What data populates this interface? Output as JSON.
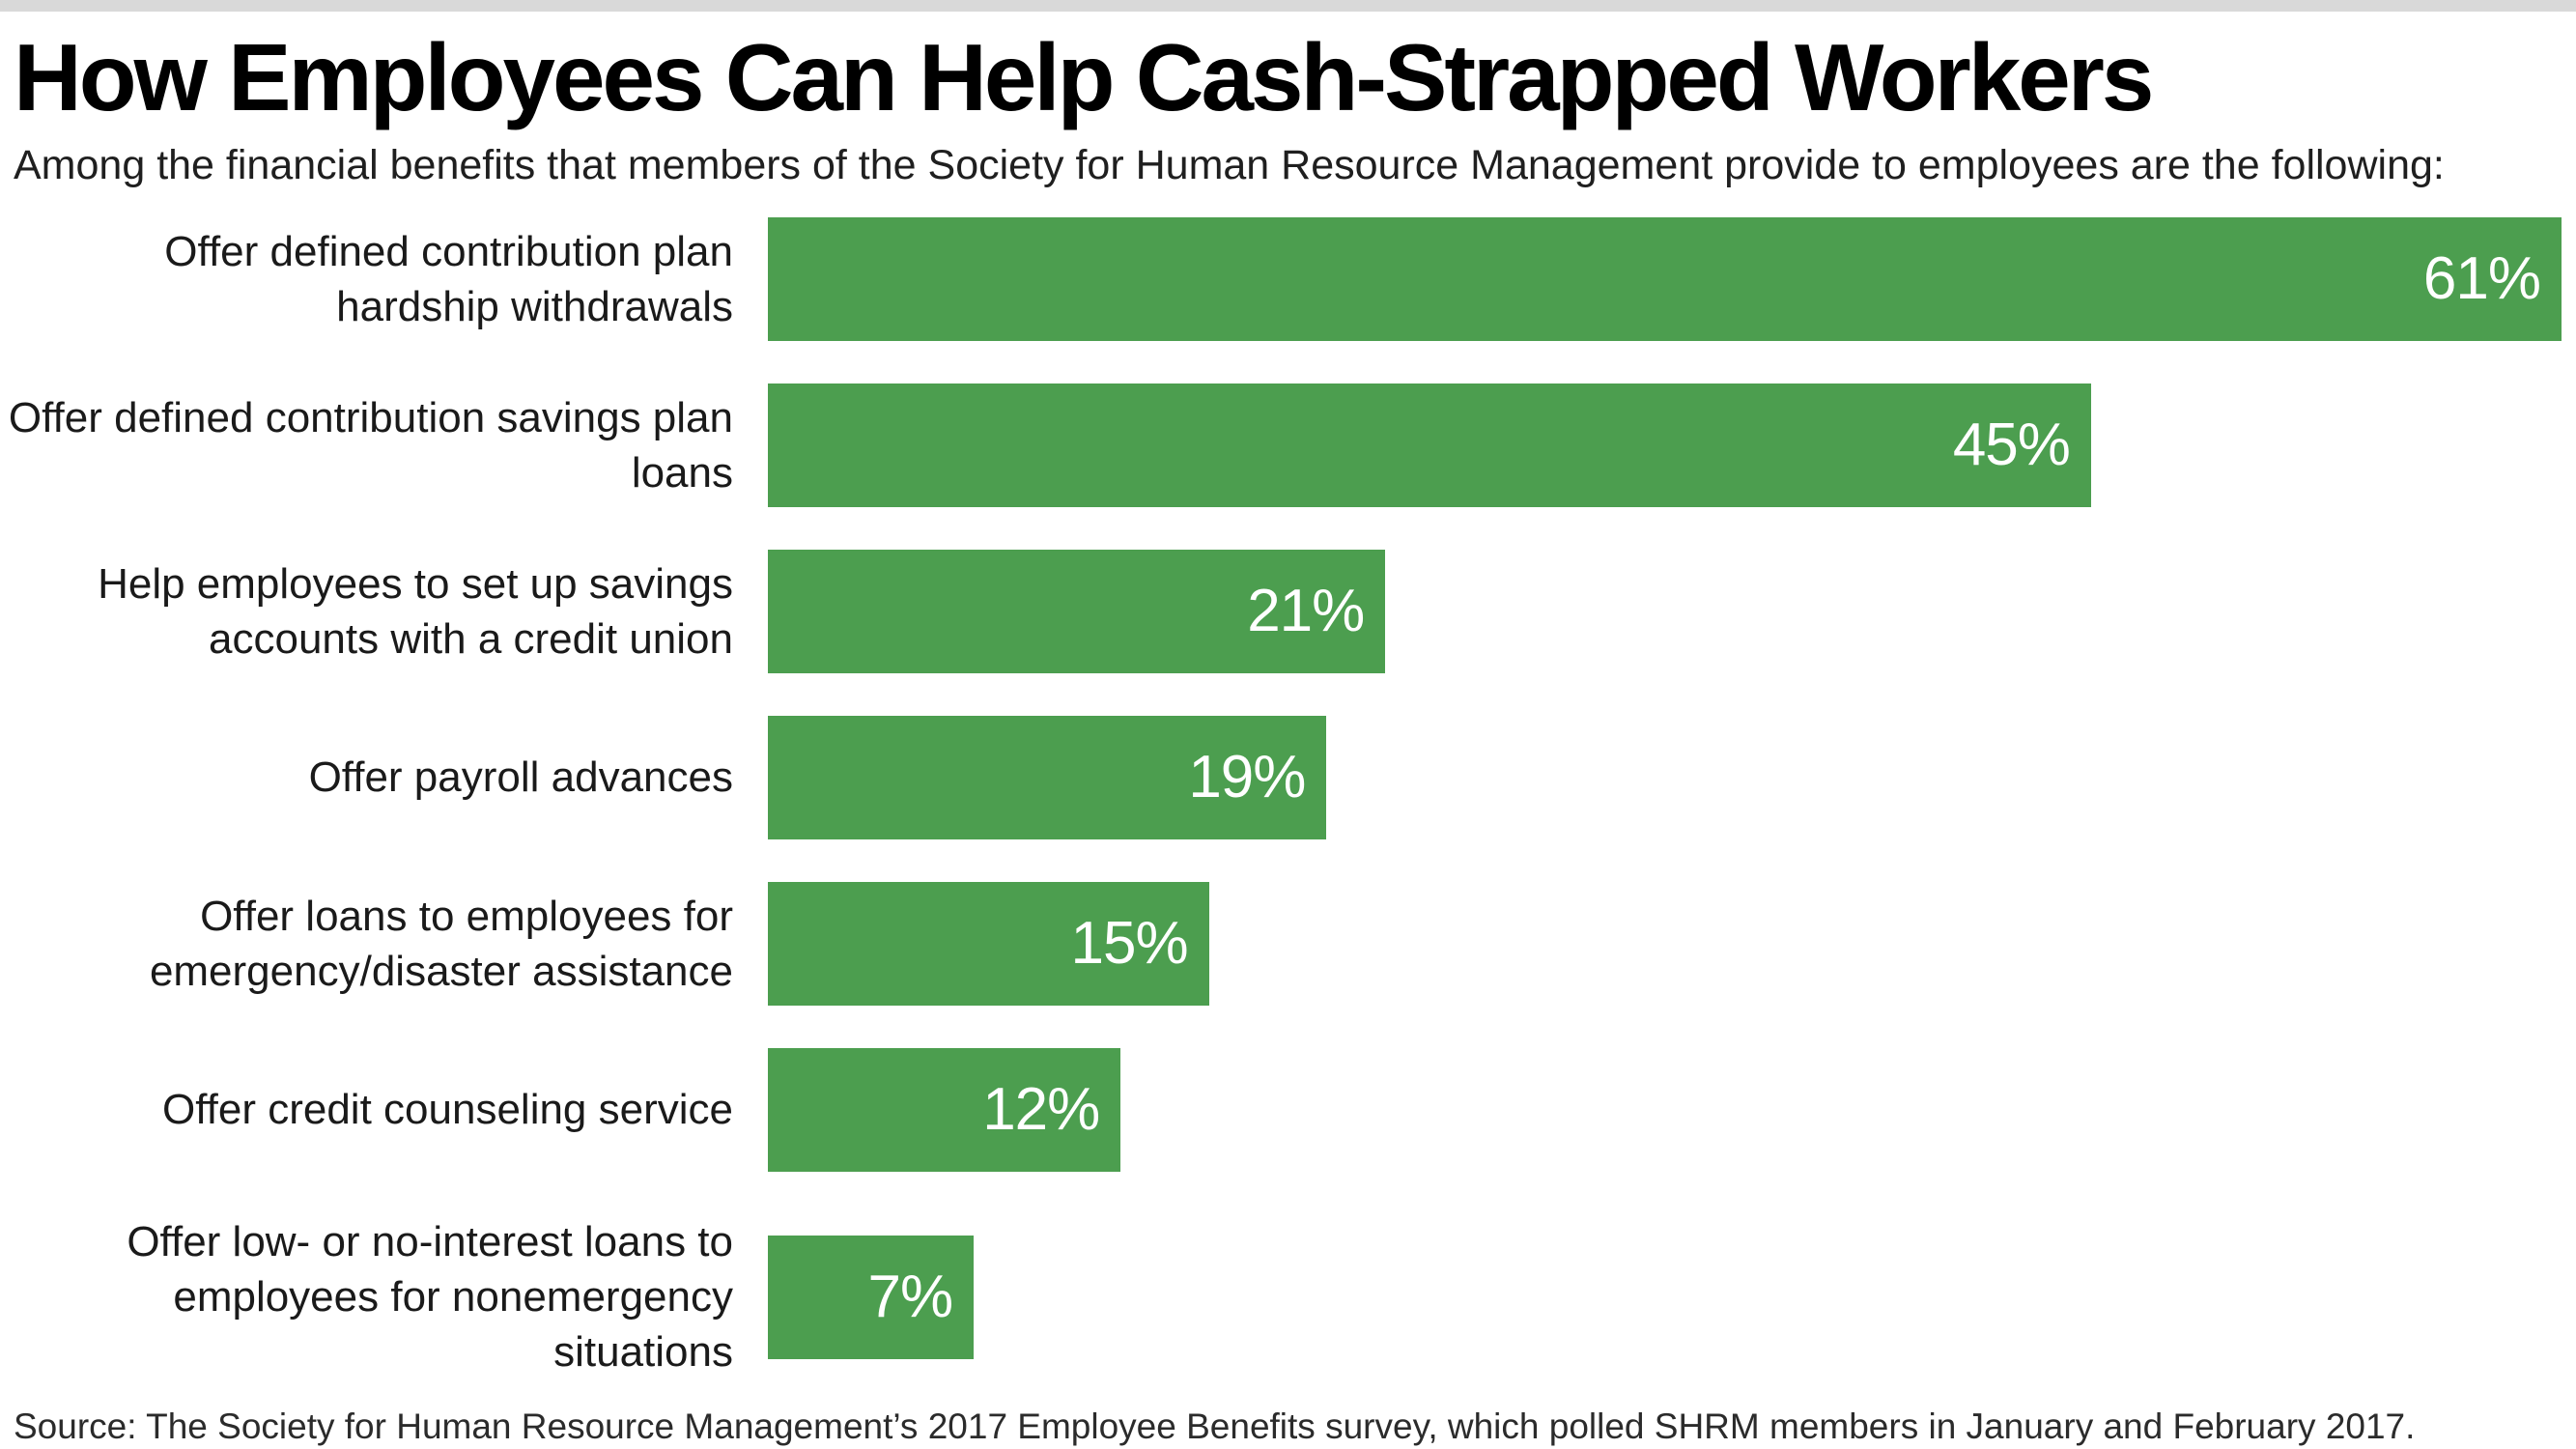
{
  "page": {
    "title": "How Employees Can Help Cash-Strapped Workers",
    "subtitle": "Among the financial benefits that members of the Society for Human Resource Management provide to employees are the following:",
    "source": "Source: The Society for Human Resource Management’s 2017 Employee Benefits survey, which polled SHRM members in January and February 2017."
  },
  "colors": {
    "bar": "#4C9E4F",
    "top_strip": "#D9D9D9",
    "value_text": "#FFFFFF",
    "text": "#1A1A1A"
  },
  "chart_data": {
    "type": "bar",
    "orientation": "horizontal",
    "title": "How Employees Can Help Cash-Strapped Workers",
    "xlabel": "",
    "ylabel": "",
    "categories": [
      "Offer defined contribution plan hardship withdrawals",
      "Offer defined contribution savings plan loans",
      "Help employees to set up savings accounts with a credit union",
      "Offer payroll advances",
      "Offer loans to employees for emergency/disaster assistance",
      "Offer credit counseling service",
      "Offer low- or no-interest loans to employees for nonemergency situations"
    ],
    "values": [
      61,
      45,
      21,
      19,
      15,
      12,
      7
    ],
    "value_labels": [
      "61%",
      "45%",
      "21%",
      "19%",
      "15%",
      "12%",
      "7%"
    ],
    "xlim": [
      0,
      61
    ],
    "grid": false,
    "legend": false,
    "value_label_position": "inside-right",
    "bar_color": "#4C9E4F"
  }
}
